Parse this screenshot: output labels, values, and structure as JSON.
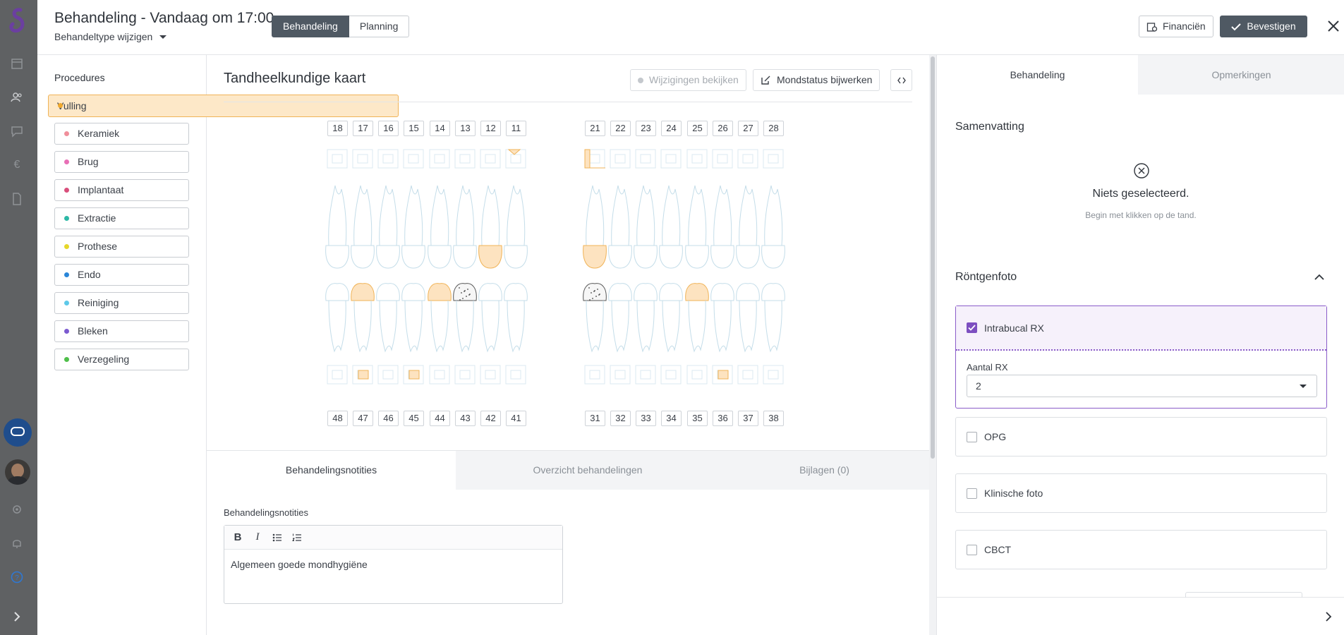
{
  "header": {
    "title": "Behandeling - Vandaag om 17:00",
    "subtitle": "Behandeltype wijzigen",
    "tabs": [
      "Behandeling",
      "Planning"
    ],
    "financien": "Financiën",
    "bevestigen": "Bevestigen"
  },
  "procedures": {
    "title": "Procedures",
    "items": [
      {
        "label": "Vulling",
        "color": "#f0a92e"
      },
      {
        "label": "Keramiek",
        "color": "#f08f9b"
      },
      {
        "label": "Brug",
        "color": "#e86fb6"
      },
      {
        "label": "Implantaat",
        "color": "#d94f7b"
      },
      {
        "label": "Extractie",
        "color": "#2cb8a6"
      },
      {
        "label": "Prothese",
        "color": "#e6d72a"
      },
      {
        "label": "Endo",
        "color": "#2a86d8"
      },
      {
        "label": "Reiniging",
        "color": "#5ec9e9"
      },
      {
        "label": "Bleken",
        "color": "#7b5ad0"
      },
      {
        "label": "Verzegeling",
        "color": "#4fbf4a"
      }
    ]
  },
  "chart": {
    "title": "Tandheelkundige kaart",
    "wijzigingen": "Wijzigingen bekijken",
    "mondstatus": "Mondstatus bijwerken",
    "upper_teeth": [
      "18",
      "17",
      "16",
      "15",
      "14",
      "13",
      "12",
      "11",
      "21",
      "22",
      "23",
      "24",
      "25",
      "26",
      "27",
      "28"
    ],
    "lower_teeth": [
      "48",
      "47",
      "46",
      "45",
      "44",
      "43",
      "42",
      "41",
      "31",
      "32",
      "33",
      "34",
      "35",
      "36",
      "37",
      "38"
    ]
  },
  "notes": {
    "tabs": [
      "Behandelingsnotities",
      "Overzicht behandelingen",
      "Bijlagen (0)"
    ],
    "label": "Behandelingsnotities",
    "text": "Algemeen goede mondhygiëne"
  },
  "right": {
    "tabs": [
      "Behandeling",
      "Opmerkingen"
    ],
    "samenvatting": "Samenvatting",
    "empty_title": "Niets geselecteerd.",
    "empty_sub": "Begin met klikken op de tand.",
    "rontgen": "Röntgenfoto",
    "intrabucal": "Intrabucal RX",
    "aantal_label": "Aantal RX",
    "aantal_value": "2",
    "options": [
      "OPG",
      "Klinische foto",
      "CBCT"
    ]
  }
}
